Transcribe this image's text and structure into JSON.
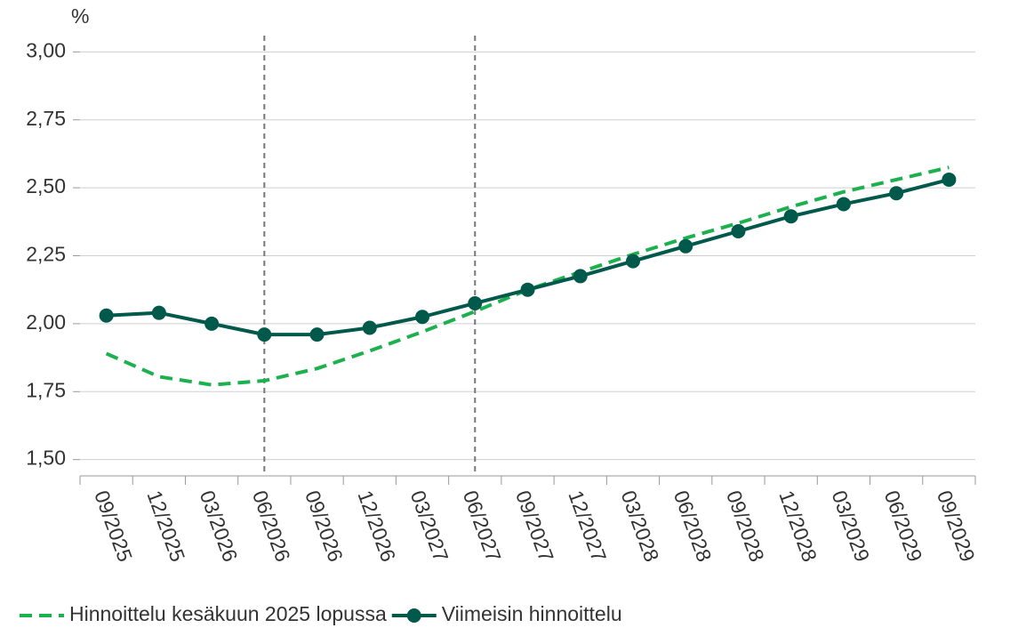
{
  "chart_data": {
    "type": "line",
    "y_label": "%",
    "categories": [
      "09/2025",
      "12/2025",
      "03/2026",
      "06/2026",
      "09/2026",
      "12/2026",
      "03/2027",
      "06/2027",
      "09/2027",
      "12/2027",
      "03/2028",
      "06/2028",
      "09/2028",
      "12/2028",
      "03/2029",
      "06/2029",
      "09/2029"
    ],
    "series": [
      {
        "name": "Hinnoittelu kesäkuun 2025 lopussa",
        "color": "#1db04f",
        "style": "dashed",
        "markers": false,
        "values": [
          1.89,
          1.805,
          1.775,
          1.79,
          1.835,
          1.9,
          1.97,
          2.045,
          2.125,
          2.19,
          2.255,
          2.315,
          2.37,
          2.43,
          2.485,
          2.53,
          2.575
        ]
      },
      {
        "name": "Viimeisin hinnoittelu",
        "color": "#00594a",
        "style": "solid",
        "markers": true,
        "values": [
          2.03,
          2.04,
          2.0,
          1.96,
          1.96,
          1.985,
          2.025,
          2.075,
          2.125,
          2.175,
          2.23,
          2.285,
          2.34,
          2.395,
          2.44,
          2.48,
          2.53
        ]
      }
    ],
    "vertical_lines": [
      "06/2026",
      "06/2027"
    ],
    "ylim": [
      1.44,
      3.06
    ],
    "yticks": [
      {
        "value": 1.5,
        "label": "1,50"
      },
      {
        "value": 1.75,
        "label": "1,75"
      },
      {
        "value": 2,
        "label": "2,00"
      },
      {
        "value": 2.25,
        "label": "2,25"
      },
      {
        "value": 2.5,
        "label": "2,50"
      },
      {
        "value": 2.75,
        "label": "2,75"
      },
      {
        "value": 3,
        "label": "3,00"
      }
    ],
    "grid": true,
    "legend": "bottom"
  }
}
